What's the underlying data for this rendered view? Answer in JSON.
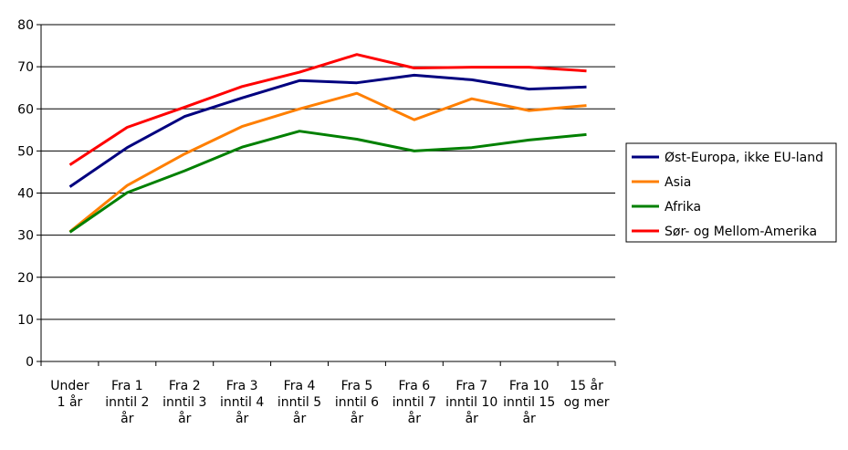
{
  "chart_data": {
    "type": "line",
    "categories": [
      [
        "Under",
        "1 år"
      ],
      [
        "Fra 1",
        "inntil 2",
        "år"
      ],
      [
        "Fra 2",
        "inntil 3",
        "år"
      ],
      [
        "Fra 3",
        "inntil 4",
        "år"
      ],
      [
        "Fra 4",
        "inntil 5",
        "år"
      ],
      [
        "Fra 5",
        "inntil 6",
        "år"
      ],
      [
        "Fra 6",
        "inntil 7",
        "år"
      ],
      [
        "Fra 7",
        "inntil 10",
        "år"
      ],
      [
        "Fra 10",
        "inntil 15",
        "år"
      ],
      [
        "15 år",
        "og mer"
      ]
    ],
    "ylim": [
      0,
      80
    ],
    "yticks": [
      0,
      10,
      20,
      30,
      40,
      50,
      60,
      70,
      80
    ],
    "grid": true,
    "legend_position": "right",
    "series": [
      {
        "name": "Øst-Europa, ikke EU-land",
        "color": "#00007f",
        "values": [
          41.5,
          50.8,
          58.2,
          62.6,
          66.7,
          66.2,
          68.0,
          66.9,
          64.7,
          65.2
        ]
      },
      {
        "name": "Asia",
        "color": "#ff7f00",
        "values": [
          30.8,
          41.8,
          49.3,
          55.8,
          60.0,
          63.7,
          57.4,
          62.4,
          59.6,
          60.8
        ]
      },
      {
        "name": "Afrika",
        "color": "#008000",
        "values": [
          30.7,
          40.1,
          45.3,
          50.9,
          54.7,
          52.8,
          50.0,
          50.8,
          52.6,
          53.9
        ]
      },
      {
        "name": "Sør- og Mellom-Amerika",
        "color": "#ff0000",
        "values": [
          46.7,
          55.6,
          60.4,
          65.3,
          68.7,
          72.9,
          69.7,
          69.9,
          69.9,
          69.0
        ]
      }
    ]
  }
}
